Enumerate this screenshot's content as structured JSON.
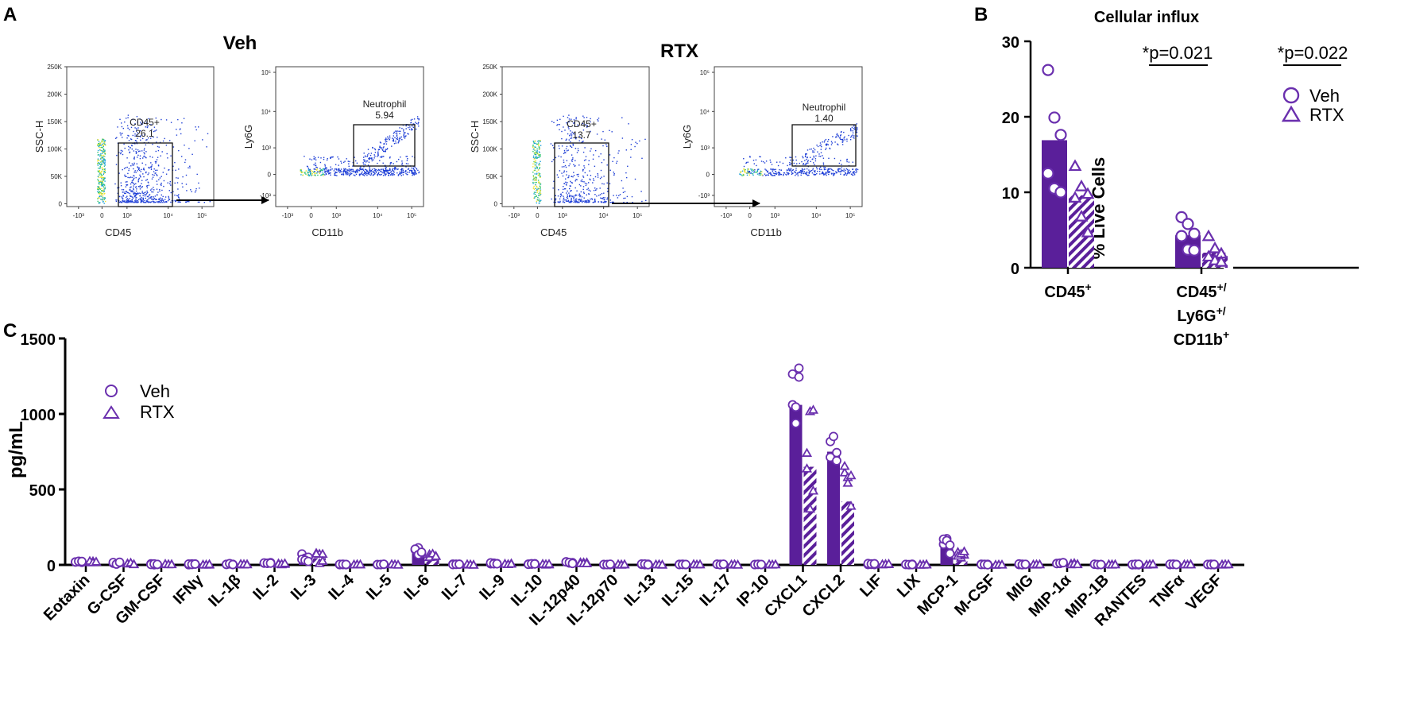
{
  "panel_labels": {
    "a": "A",
    "b": "B",
    "c": "C"
  },
  "colors": {
    "bar": "#5a1f9a",
    "marker": "#6a2fae",
    "axis": "#000000",
    "gate": "#000000"
  },
  "panel_a": {
    "plots": [
      {
        "group": "Veh",
        "x_label": "CD45",
        "y_label": "SSC-H",
        "gate_name": "CD45+",
        "gate_value": "26.1",
        "x_ticks": [
          "-10³",
          "0",
          "10³",
          "10⁴",
          "10⁵"
        ],
        "y_ticks": [
          "250K",
          "200K",
          "150K",
          "100K",
          "50K",
          "0"
        ]
      },
      {
        "group": "Veh",
        "x_label": "CD11b",
        "y_label": "Ly6G",
        "gate_name": "Neutrophil",
        "gate_value": "5.94",
        "x_ticks": [
          "-10³",
          "0",
          "10³",
          "10⁴",
          "10⁵"
        ],
        "y_ticks": [
          "10⁵",
          "10⁴",
          "10³",
          "0",
          "-10³"
        ]
      },
      {
        "group": "RTX",
        "x_label": "CD45",
        "y_label": "SSC-H",
        "gate_name": "CD45+",
        "gate_value": "13.7",
        "x_ticks": [
          "-10³",
          "0",
          "10³",
          "10⁴",
          "10⁵"
        ],
        "y_ticks": [
          "250K",
          "200K",
          "150K",
          "100K",
          "50K",
          "0"
        ]
      },
      {
        "group": "RTX",
        "x_label": "CD11b",
        "y_label": "Ly6G",
        "gate_name": "Neutrophil",
        "gate_value": "1.40",
        "x_ticks": [
          "-10³",
          "0",
          "10³",
          "10⁴",
          "10⁵"
        ],
        "y_ticks": [
          "10⁵",
          "10⁴",
          "10³",
          "0",
          "-10³"
        ]
      }
    ],
    "group_titles": [
      "Veh",
      "RTX"
    ]
  },
  "chart_data": [
    {
      "type": "bar",
      "title": "Cellular influx",
      "ylabel": "% Live Cells",
      "ylim": [
        0,
        30
      ],
      "yticks": [
        0,
        10,
        20,
        30
      ],
      "categories": [
        "CD45+",
        "CD45+/Ly6G+/CD11b+"
      ],
      "category_lines": [
        [
          "CD45",
          "+"
        ],
        [
          "CD45",
          "+/"
        ],
        [
          "Ly6G",
          "+/"
        ],
        [
          "CD11b",
          "+"
        ]
      ],
      "series": [
        {
          "name": "Veh",
          "marker": "circle",
          "values": [
            16.9,
            4.3
          ],
          "points": [
            [
              26.2,
              19.9,
              17.6,
              12.5,
              10.5,
              10.0
            ],
            [
              6.7,
              5.8,
              4.5,
              4.2,
              2.4,
              2.3
            ]
          ]
        },
        {
          "name": "RTX",
          "marker": "triangle",
          "pattern": "hatched",
          "values": [
            9.6,
            2.0
          ],
          "points": [
            [
              13.5,
              10.8,
              9.8,
              9.3,
              6.8,
              4.7
            ],
            [
              4.2,
              2.6,
              1.9,
              1.5,
              1.0,
              0.8
            ]
          ]
        }
      ],
      "annotations": [
        "*p=0.021",
        "*p=0.022"
      ]
    },
    {
      "type": "bar",
      "title": "",
      "ylabel": "pg/mL",
      "ylim": [
        0,
        1500
      ],
      "yticks": [
        0,
        500,
        1000,
        1500
      ],
      "categories": [
        "Eotaxin",
        "G-CSF",
        "GM-CSF",
        "IFNγ",
        "IL-1β",
        "IL-2",
        "IL-3",
        "IL-4",
        "IL-5",
        "IL-6",
        "IL-7",
        "IL-9",
        "IL-10",
        "IL-12p40",
        "IL-12p70",
        "IL-13",
        "IL-15",
        "IL-17",
        "IP-10",
        "CXCL1",
        "CXCL2",
        "LIF",
        "LIX",
        "MCP-1",
        "M-CSF",
        "MIG",
        "MIP-1α",
        "MIP-1B",
        "RANTES",
        "TNFα",
        "VEGF"
      ],
      "series": [
        {
          "name": "Veh",
          "marker": "circle",
          "values": [
            25,
            12,
            5,
            4,
            5,
            10,
            50,
            3,
            3,
            90,
            3,
            10,
            5,
            15,
            4,
            4,
            3,
            3,
            3,
            1060,
            750,
            6,
            4,
            120,
            3,
            4,
            10,
            3,
            3,
            3,
            3
          ],
          "spread": [
            10,
            8,
            4,
            3,
            4,
            6,
            30,
            2,
            2,
            25,
            2,
            6,
            3,
            8,
            3,
            3,
            2,
            2,
            2,
            300,
            120,
            4,
            3,
            70,
            2,
            3,
            6,
            2,
            2,
            2,
            2
          ]
        },
        {
          "name": "RTX",
          "marker": "triangle",
          "pattern": "hatched",
          "values": [
            20,
            10,
            4,
            3,
            4,
            8,
            45,
            3,
            3,
            55,
            3,
            8,
            4,
            12,
            3,
            3,
            3,
            3,
            3,
            650,
            420,
            5,
            3,
            60,
            3,
            3,
            8,
            3,
            3,
            3,
            3
          ],
          "spread": [
            8,
            6,
            3,
            2,
            3,
            5,
            35,
            2,
            2,
            25,
            2,
            5,
            3,
            6,
            2,
            2,
            2,
            2,
            2,
            380,
            240,
            3,
            2,
            55,
            2,
            2,
            5,
            2,
            2,
            2,
            2
          ]
        }
      ]
    }
  ]
}
